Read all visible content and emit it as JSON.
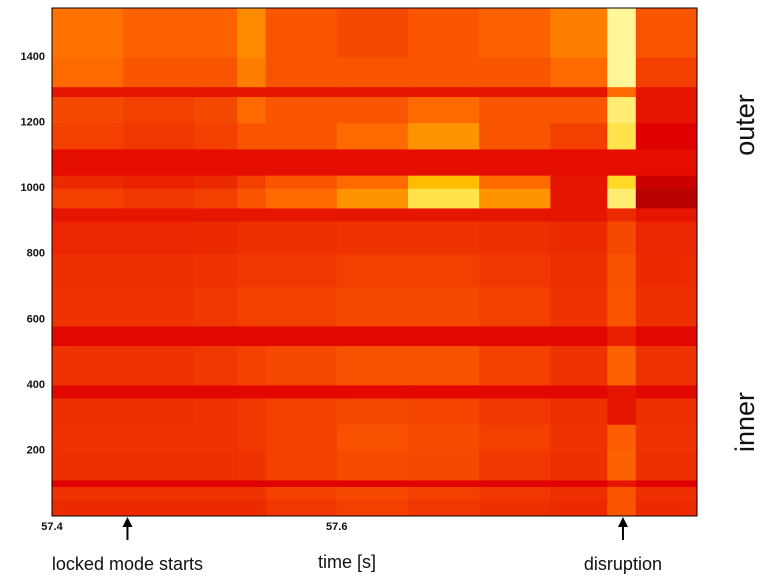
{
  "chart_data": {
    "type": "heatmap",
    "xlabel": "time [s]",
    "xlim": [
      57.4,
      57.853
    ],
    "xticks": [
      57.4,
      57.6
    ],
    "ylim": [
      0,
      1550
    ],
    "yticks": [
      200,
      400,
      600,
      800,
      1000,
      1200,
      1400
    ],
    "x_bins": [
      57.4,
      57.45,
      57.5,
      57.53,
      57.55,
      57.6,
      57.65,
      57.7,
      57.75,
      57.79,
      57.81,
      57.853
    ],
    "y_bins": [
      0,
      50,
      90,
      110,
      200,
      280,
      360,
      400,
      520,
      580,
      700,
      800,
      900,
      940,
      1000,
      1040,
      1120,
      1200,
      1280,
      1310,
      1400,
      1550
    ],
    "colormap": [
      "#7a0000",
      "#e00000",
      "#ff6a00",
      "#ffd000",
      "#ffffc0"
    ],
    "z": [
      [
        0.35,
        0.35,
        0.35,
        0.35,
        0.38,
        0.4,
        0.38,
        0.36,
        0.35,
        0.45,
        0.35
      ],
      [
        0.37,
        0.37,
        0.37,
        0.37,
        0.4,
        0.42,
        0.4,
        0.38,
        0.36,
        0.45,
        0.36
      ],
      [
        0.25,
        0.25,
        0.25,
        0.25,
        0.25,
        0.25,
        0.25,
        0.25,
        0.25,
        0.3,
        0.25
      ],
      [
        0.36,
        0.36,
        0.36,
        0.37,
        0.4,
        0.43,
        0.42,
        0.38,
        0.36,
        0.48,
        0.36
      ],
      [
        0.37,
        0.37,
        0.37,
        0.38,
        0.4,
        0.44,
        0.43,
        0.4,
        0.37,
        0.47,
        0.37
      ],
      [
        0.36,
        0.36,
        0.37,
        0.38,
        0.4,
        0.42,
        0.41,
        0.38,
        0.36,
        0.3,
        0.36
      ],
      [
        0.27,
        0.27,
        0.27,
        0.27,
        0.27,
        0.27,
        0.27,
        0.27,
        0.27,
        0.3,
        0.27
      ],
      [
        0.37,
        0.37,
        0.38,
        0.4,
        0.42,
        0.44,
        0.44,
        0.4,
        0.37,
        0.48,
        0.37
      ],
      [
        0.27,
        0.27,
        0.27,
        0.27,
        0.27,
        0.27,
        0.27,
        0.27,
        0.27,
        0.32,
        0.27
      ],
      [
        0.37,
        0.37,
        0.38,
        0.4,
        0.4,
        0.42,
        0.42,
        0.4,
        0.37,
        0.45,
        0.36
      ],
      [
        0.36,
        0.36,
        0.37,
        0.38,
        0.38,
        0.4,
        0.4,
        0.38,
        0.36,
        0.44,
        0.35
      ],
      [
        0.34,
        0.34,
        0.35,
        0.36,
        0.36,
        0.37,
        0.37,
        0.36,
        0.35,
        0.42,
        0.34
      ],
      [
        0.3,
        0.3,
        0.3,
        0.3,
        0.3,
        0.3,
        0.3,
        0.3,
        0.3,
        0.35,
        0.3
      ],
      [
        0.4,
        0.38,
        0.4,
        0.45,
        0.5,
        0.6,
        0.85,
        0.6,
        0.3,
        0.9,
        0.15
      ],
      [
        0.35,
        0.33,
        0.35,
        0.4,
        0.45,
        0.5,
        0.7,
        0.5,
        0.3,
        0.8,
        0.2
      ],
      [
        0.28,
        0.28,
        0.28,
        0.28,
        0.28,
        0.28,
        0.28,
        0.28,
        0.28,
        0.28,
        0.28
      ],
      [
        0.4,
        0.38,
        0.4,
        0.45,
        0.45,
        0.5,
        0.6,
        0.45,
        0.4,
        0.85,
        0.25
      ],
      [
        0.42,
        0.4,
        0.42,
        0.5,
        0.45,
        0.45,
        0.5,
        0.45,
        0.45,
        0.9,
        0.3
      ],
      [
        0.3,
        0.3,
        0.3,
        0.3,
        0.3,
        0.3,
        0.3,
        0.3,
        0.3,
        0.5,
        0.3
      ],
      [
        0.5,
        0.45,
        0.45,
        0.55,
        0.45,
        0.45,
        0.45,
        0.45,
        0.5,
        0.95,
        0.4
      ],
      [
        0.52,
        0.48,
        0.48,
        0.58,
        0.45,
        0.42,
        0.45,
        0.48,
        0.55,
        0.95,
        0.45
      ]
    ],
    "annotations": [
      {
        "text": "locked mode starts",
        "x": 57.453
      },
      {
        "text": "disruption",
        "x": 57.801
      }
    ],
    "region_labels": [
      "outer",
      "inner"
    ]
  }
}
